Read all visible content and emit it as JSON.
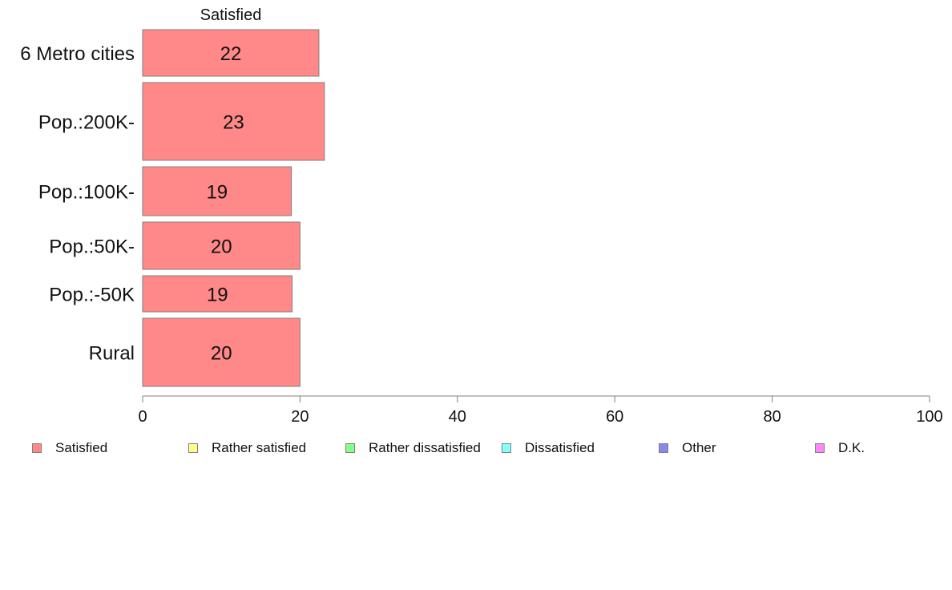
{
  "chart_data": {
    "type": "bar",
    "orientation": "horizontal",
    "stacked": true,
    "categories": [
      "6 Metro cities",
      "Pop.:200K-",
      "Pop.:100K-",
      "Pop.:50K-",
      "Pop.:-50K",
      "Rural"
    ],
    "series": [
      {
        "name": "Satisfied",
        "color": "#ff8888",
        "values": [
          22.4,
          23.1,
          18.9,
          20.0,
          19.0,
          20.0
        ],
        "labels": [
          "22",
          "23",
          "19",
          "20",
          "19",
          "20"
        ]
      }
    ],
    "series_header": "Satisfied",
    "xlim": [
      0,
      100
    ],
    "xticks": [
      0,
      20,
      40,
      60,
      80,
      100
    ],
    "grid": false,
    "legend_position": "bottom"
  },
  "legend": [
    {
      "name": "Satisfied",
      "color": "#ff8888"
    },
    {
      "name": "Rather satisfied",
      "color": "#ffff88"
    },
    {
      "name": "Rather dissatisfied",
      "color": "#88ff88"
    },
    {
      "name": "Dissatisfied",
      "color": "#88ffff"
    },
    {
      "name": "Other",
      "color": "#8888ee"
    },
    {
      "name": "D.K.",
      "color": "#ff88ff"
    }
  ]
}
